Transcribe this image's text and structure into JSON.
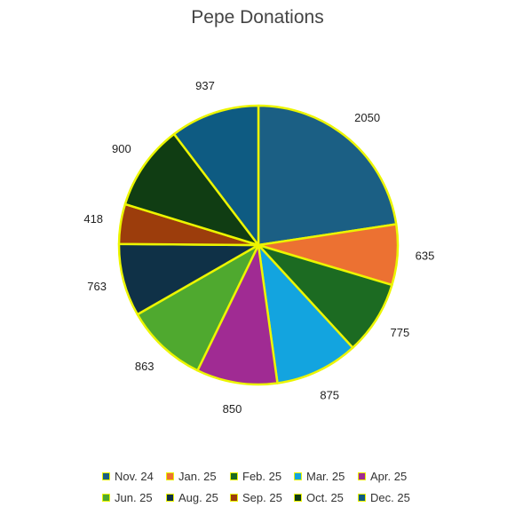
{
  "chart_data": {
    "type": "pie",
    "title": "Pepe Donations",
    "categories": [
      "Nov. 24",
      "Jan. 25",
      "Feb. 25",
      "Mar. 25",
      "Apr. 25",
      "Jun. 25",
      "Aug. 25",
      "Sep. 25",
      "Oct. 25",
      "Dec. 25"
    ],
    "values": [
      2050,
      635,
      775,
      875,
      850,
      863,
      763,
      418,
      900,
      937
    ],
    "slice_categories": [
      "Nov. 24",
      "Jan. 25",
      "Feb. 25",
      "Mar. 25",
      "Jun. 25",
      "Aug. 25",
      "Sep. 25",
      "Oct. 25",
      "Dec. 25",
      "Apr. 25"
    ],
    "slice_colors": [
      "#1b5f84",
      "#ec7132",
      "#1c6b22",
      "#13a4df",
      "#a02b93",
      "#4fa92f",
      "#0f3147",
      "#9c3d0c",
      "#103d13",
      "#0e5b82"
    ],
    "legend_colors": [
      "#1b5f84",
      "#ec7132",
      "#1c6b22",
      "#13a4df",
      "#a02b93",
      "#4fa92f",
      "#0f3147",
      "#9c3d0c",
      "#103d13",
      "#0e5b82"
    ],
    "outline_color": "#ecf500",
    "legend_position": "bottom",
    "show_data_labels": true
  }
}
